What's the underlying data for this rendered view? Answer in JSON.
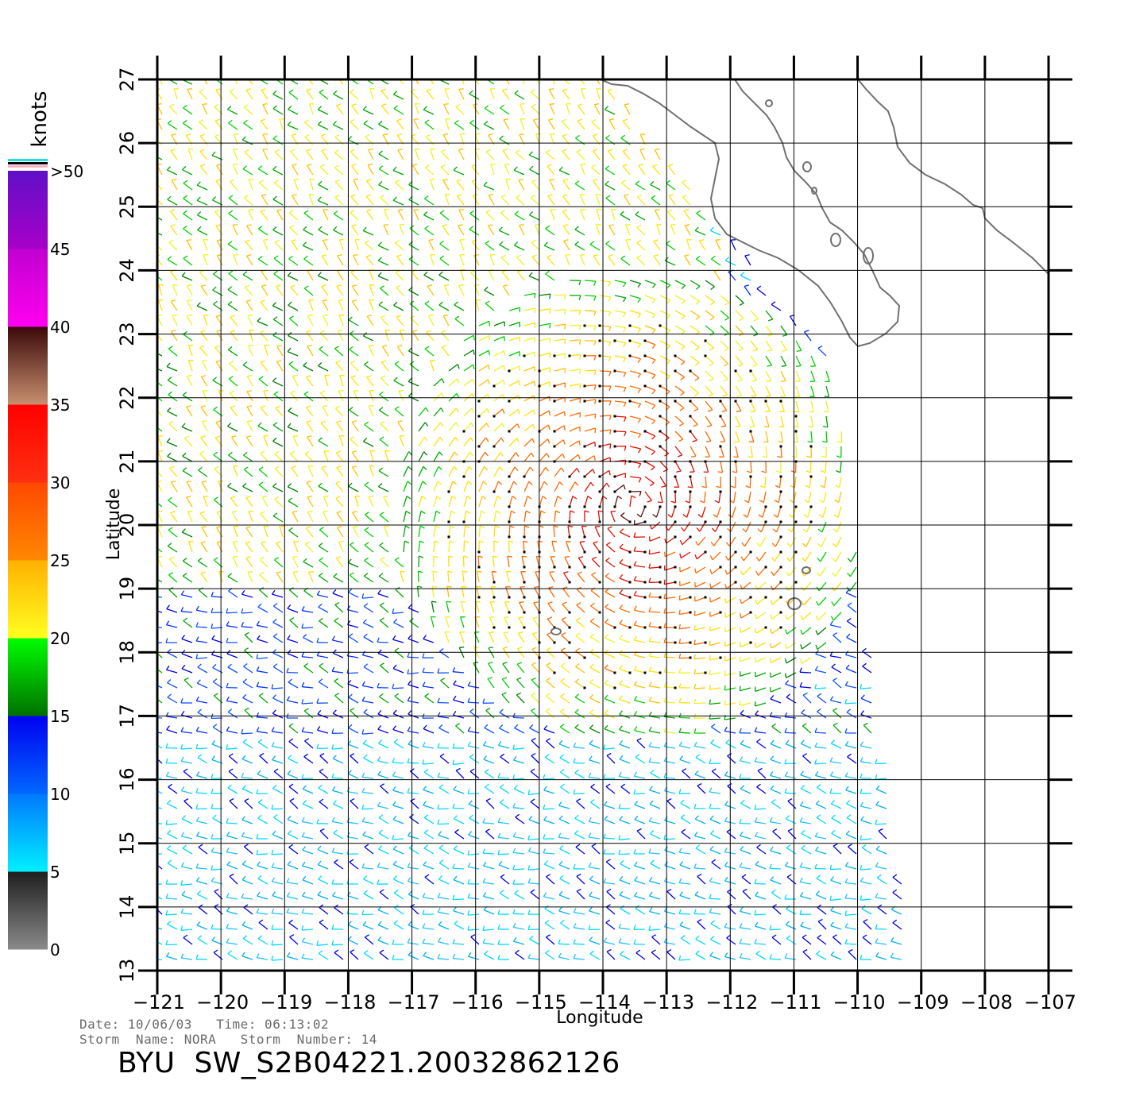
{
  "map": {
    "x_axis_label": "Longitude",
    "y_axis_label": "Latitude",
    "lon_ticks": [
      "−121",
      "−120",
      "−119",
      "−118",
      "−117",
      "−116",
      "−115",
      "−114",
      "−113",
      "−112",
      "−111",
      "−110",
      "−109",
      "−108",
      "−107"
    ],
    "lat_ticks": [
      "13",
      "14",
      "15",
      "16",
      "17",
      "18",
      "19",
      "20",
      "21",
      "22",
      "23",
      "24",
      "25",
      "26",
      "27"
    ],
    "lon_range": [
      -121,
      -107
    ],
    "lat_range": [
      13,
      27
    ],
    "storm_center": {
      "lon": -113.5,
      "lat": 20.3
    },
    "swath_east_edge_lon": [
      -109.7,
      -111.0
    ]
  },
  "colorbar": {
    "units": "knots",
    "labels": [
      ">50",
      "45",
      "40",
      "35",
      "30",
      "25",
      "20",
      "15",
      "10",
      "5",
      "0"
    ],
    "bands": [
      {
        "from": 0,
        "to": 5,
        "colors": [
          "#8a8a8a",
          "#1e1e1e"
        ]
      },
      {
        "from": 5,
        "to": 10,
        "colors": [
          "#00f0ff",
          "#0078ff"
        ]
      },
      {
        "from": 10,
        "to": 15,
        "colors": [
          "#0068ff",
          "#0000f0"
        ]
      },
      {
        "from": 15,
        "to": 20,
        "colors": [
          "#007000",
          "#00ff00"
        ]
      },
      {
        "from": 20,
        "to": 25,
        "colors": [
          "#ffff20",
          "#ffb000"
        ]
      },
      {
        "from": 25,
        "to": 30,
        "colors": [
          "#ff8800",
          "#ff4800"
        ]
      },
      {
        "from": 30,
        "to": 35,
        "colors": [
          "#ff3010",
          "#ff0000"
        ]
      },
      {
        "from": 35,
        "to": 40,
        "colors": [
          "#c89070",
          "#3a0808"
        ]
      },
      {
        "from": 40,
        "to": 45,
        "colors": [
          "#ff00f0",
          "#c000d0"
        ]
      },
      {
        "from": 45,
        "to": 50,
        "colors": [
          "#a800c8",
          "#6010c8"
        ]
      }
    ],
    "overflow_colors": [
      "#20e0e0",
      "#000000",
      "#ffb0c8"
    ]
  },
  "footer": {
    "line1": "Date: 10/06/03   Time: 06:13:02",
    "line2": "Storm  Name: NORA   Storm  Number: 14",
    "title": "BYU  SW_S2B04221.20032862126"
  }
}
